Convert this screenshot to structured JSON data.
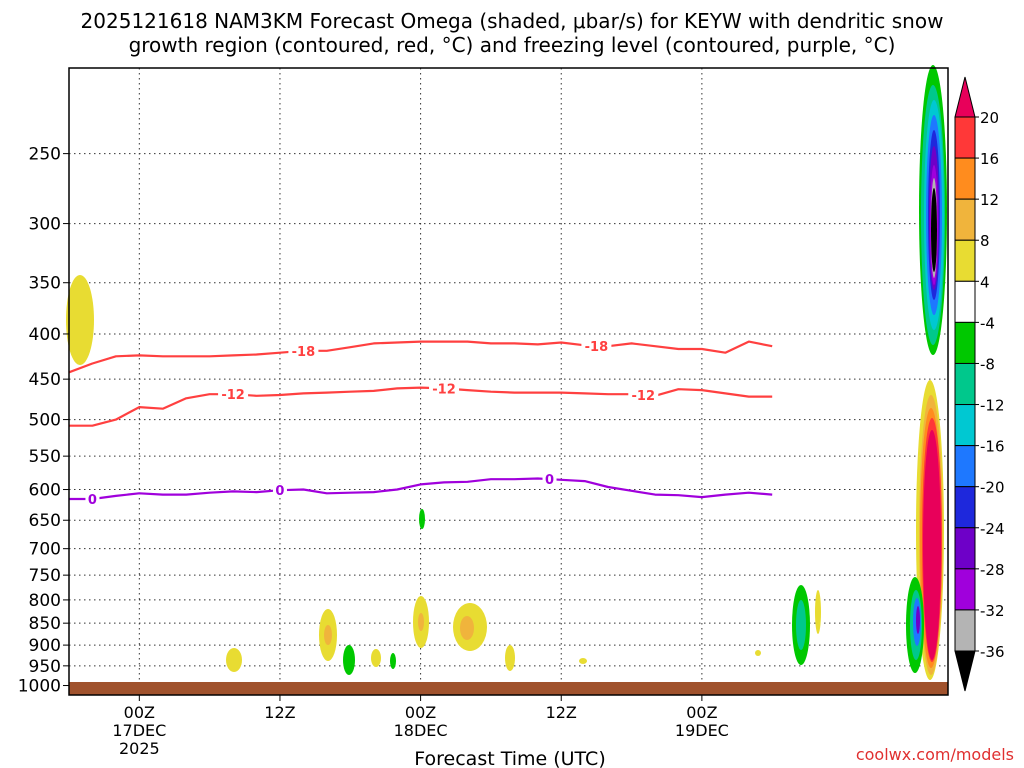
{
  "chart_data": {
    "type": "heatmap",
    "title_line1": "2025121618 NAM3KM Forecast Omega (shaded, μbar/s) for KEYW with dendritic snow",
    "title_line2": "growth region (contoured, red, °C) and freezing level (contoured, purple, °C)",
    "xlabel": "Forecast Time (UTC)",
    "credit": "coolwx.com/models",
    "y_axis": {
      "type": "pressure (log)",
      "range": [
        1025,
        200
      ],
      "ticks": [
        250,
        300,
        350,
        400,
        450,
        500,
        550,
        600,
        650,
        700,
        750,
        800,
        850,
        900,
        950,
        1000
      ]
    },
    "x_axis": {
      "range_hours": [
        0,
        75
      ],
      "ticks": [
        {
          "hour": 6,
          "line1": "00Z",
          "line2": "17DEC",
          "line3": "2025"
        },
        {
          "hour": 18,
          "line1": "12Z",
          "line2": "",
          "line3": ""
        },
        {
          "hour": 30,
          "line1": "00Z",
          "line2": "18DEC",
          "line3": ""
        },
        {
          "hour": 42,
          "line1": "12Z",
          "line2": "",
          "line3": ""
        },
        {
          "hour": 54,
          "line1": "00Z",
          "line2": "19DEC",
          "line3": ""
        }
      ]
    },
    "colorbar": {
      "labels": [
        "20",
        "16",
        "12",
        "8",
        "4",
        "-4",
        "-8",
        "-12",
        "-16",
        "-20",
        "-24",
        "-28",
        "-32",
        "-36"
      ],
      "colors": [
        "#e8005a",
        "#ff3838",
        "#ff8c1e",
        "#f0b43c",
        "#e8dc32",
        "#ffffff",
        "#00c800",
        "#00c88c",
        "#00c8d2",
        "#1e78ff",
        "#1e28dc",
        "#6e00c8",
        "#a000dc",
        "#b4b4b4",
        "#000000"
      ]
    },
    "series": [
      {
        "name": "-18",
        "color": "#ff4040",
        "x": [
          0,
          2,
          4,
          6,
          8,
          10,
          12,
          14,
          16,
          18,
          20,
          22,
          24,
          26,
          28,
          30,
          32,
          34,
          36,
          38,
          40,
          42,
          44,
          46,
          48,
          50,
          52,
          54,
          56,
          58,
          60
        ],
        "y": [
          442,
          432,
          424,
          423,
          424,
          424,
          424,
          423,
          422,
          420,
          418,
          418,
          414,
          410,
          409,
          408,
          408,
          408,
          410,
          410,
          411,
          409,
          412,
          413,
          410,
          413,
          416,
          416,
          420,
          408,
          413
        ],
        "label_hours": [
          20,
          45
        ]
      },
      {
        "name": "-12",
        "color": "#ff4040",
        "x": [
          0,
          2,
          4,
          6,
          8,
          10,
          12,
          14,
          16,
          18,
          20,
          22,
          24,
          26,
          28,
          30,
          32,
          34,
          36,
          38,
          40,
          42,
          44,
          46,
          48,
          50,
          52,
          54,
          56,
          58,
          60
        ],
        "y": [
          508,
          508,
          500,
          484,
          486,
          473,
          468,
          468,
          470,
          469,
          467,
          466,
          465,
          464,
          461,
          460,
          461,
          463,
          465,
          466,
          466,
          466,
          467,
          468,
          468,
          470,
          462,
          463,
          467,
          471,
          471
        ],
        "label_hours": [
          14,
          32,
          49
        ]
      },
      {
        "name": "0",
        "color": "#a000dc",
        "x": [
          0,
          2,
          4,
          6,
          8,
          10,
          12,
          14,
          16,
          18,
          20,
          22,
          24,
          26,
          28,
          30,
          32,
          34,
          36,
          38,
          40,
          42,
          44,
          46,
          48,
          50,
          52,
          54,
          56,
          58,
          60
        ],
        "y": [
          615,
          615,
          610,
          606,
          608,
          608,
          605,
          603,
          604,
          601,
          600,
          606,
          605,
          604,
          600,
          592,
          589,
          588,
          584,
          584,
          583,
          585,
          587,
          596,
          602,
          608,
          609,
          612,
          608,
          605,
          608
        ],
        "label_hours": [
          2,
          18,
          41
        ]
      }
    ]
  }
}
